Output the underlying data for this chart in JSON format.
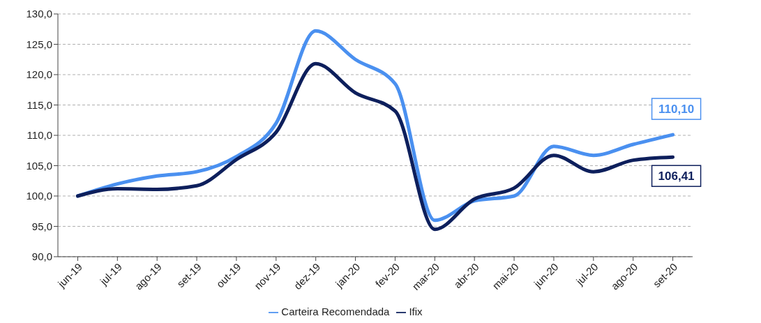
{
  "chart_data": {
    "type": "line",
    "categories": [
      "jun-19",
      "jul-19",
      "ago-19",
      "set-19",
      "out-19",
      "nov-19",
      "dez-19",
      "jan-20",
      "fev-20",
      "mar-20",
      "abr-20",
      "mai-20",
      "jun-20",
      "jul-20",
      "ago-20",
      "set-20"
    ],
    "series": [
      {
        "name": "Carteira Recomendada",
        "color": "#4a90f0",
        "values": [
          100,
          102,
          103.3,
          104,
          106.5,
          112,
          127.2,
          122.5,
          118.5,
          96,
          99.2,
          100,
          108.2,
          106.7,
          108.5,
          110.1
        ]
      },
      {
        "name": "Ifix",
        "color": "#0d1f5c",
        "values": [
          100,
          101.2,
          101.1,
          101.7,
          106,
          110.5,
          121.8,
          117,
          114,
          94.5,
          99.5,
          101.3,
          106.7,
          104,
          105.9,
          106.41
        ]
      }
    ],
    "ylim": [
      90,
      130
    ],
    "yticks": [
      {
        "value": 90,
        "label": "90,0"
      },
      {
        "value": 95,
        "label": "95,0"
      },
      {
        "value": 100,
        "label": "100,0"
      },
      {
        "value": 105,
        "label": "105,0"
      },
      {
        "value": 110,
        "label": "110,0"
      },
      {
        "value": 115,
        "label": "115,0"
      },
      {
        "value": 120,
        "label": "120,0"
      },
      {
        "value": 125,
        "label": "125,0"
      },
      {
        "value": 130,
        "label": "130,0"
      }
    ],
    "grid": "y",
    "legend": "bottom",
    "marker": "none",
    "line_style": "solid",
    "annotations": [
      {
        "text": "110,10",
        "x": "set-20",
        "y": 110.1
      },
      {
        "text": "106,41",
        "x": "set-20",
        "y": 106.41
      }
    ]
  }
}
